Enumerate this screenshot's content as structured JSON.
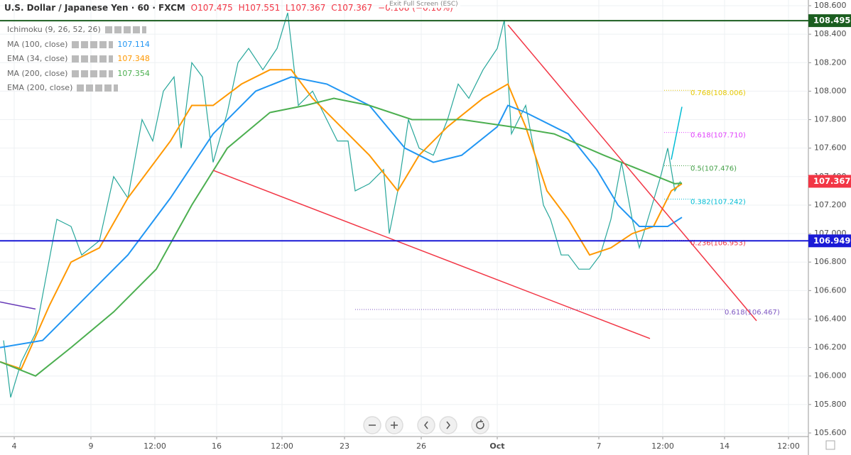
{
  "header": {
    "symbol": "U.S. Dollar / Japanese Yen · 60 · FXCM",
    "open": "O107.475",
    "high": "H107.551",
    "low": "L107.367",
    "close": "C107.367",
    "change": "−0.108 (−0.10%)",
    "exit": "Exit Full Screen (ESC)"
  },
  "indicators": [
    {
      "name": "Ichimoku (9, 26, 52, 26)"
    },
    {
      "name": "MA (100, close)",
      "value": "107.114",
      "color": "#2196f3"
    },
    {
      "name": "EMA (34, close)",
      "value": "107.348",
      "color": "#ff9800"
    },
    {
      "name": "MA (200, close)",
      "value": "107.354",
      "color": "#4caf50"
    },
    {
      "name": "EMA (200, close)"
    }
  ],
  "chart_data": {
    "type": "line",
    "xlim": [
      0,
      1138
    ],
    "ylim": [
      105.575,
      108.64
    ],
    "xticks": [
      {
        "value": 20,
        "label": "4"
      },
      {
        "value": 128,
        "label": "9"
      },
      {
        "value": 218,
        "label": "12:00"
      },
      {
        "value": 305,
        "label": "16"
      },
      {
        "value": 397,
        "label": "12:00"
      },
      {
        "value": 485,
        "label": "23"
      },
      {
        "value": 593,
        "label": "26"
      },
      {
        "value": 700,
        "label": "Oct"
      },
      {
        "value": 843,
        "label": "7"
      },
      {
        "value": 933,
        "label": "12:00"
      },
      {
        "value": 1020,
        "label": "14"
      },
      {
        "value": 1110,
        "label": "12:00"
      }
    ],
    "yticks": [
      {
        "value": 105.6,
        "label": "105.600"
      },
      {
        "value": 105.8,
        "label": "105.800"
      },
      {
        "value": 106,
        "label": "106.000"
      },
      {
        "value": 106.2,
        "label": "106.200"
      },
      {
        "value": 106.4,
        "label": "106.400"
      },
      {
        "value": 106.6,
        "label": "106.600"
      },
      {
        "value": 106.8,
        "label": "106.800"
      },
      {
        "value": 107,
        "label": "107.000"
      },
      {
        "value": 107.2,
        "label": "107.200"
      },
      {
        "value": 107.4,
        "label": "107.400"
      },
      {
        "value": 107.6,
        "label": "107.600"
      },
      {
        "value": 107.8,
        "label": "107.800"
      },
      {
        "value": 108,
        "label": "108.000"
      },
      {
        "value": 108.2,
        "label": "108.200"
      },
      {
        "value": 108.4,
        "label": "108.400"
      },
      {
        "value": 108.6,
        "label": "108.600"
      }
    ],
    "grid": true,
    "series": [
      {
        "color": "#26a69a",
        "x": [
          5,
          15,
          30,
          50,
          65,
          80,
          100,
          115,
          140,
          160,
          180,
          200,
          215,
          230,
          245,
          255,
          270,
          285,
          300,
          320,
          335,
          350,
          370,
          390,
          405,
          420,
          440,
          460,
          475,
          490,
          500,
          520,
          540,
          548,
          560,
          575,
          590,
          610,
          630,
          645,
          660,
          680,
          700,
          710,
          720,
          740,
          755,
          765,
          775,
          790,
          800,
          815,
          830,
          845,
          860,
          875,
          890,
          900,
          915,
          930,
          940,
          950,
          958
        ],
        "values": [
          106.25,
          105.85,
          106.1,
          106.3,
          106.7,
          107.1,
          107.05,
          106.85,
          106.95,
          107.4,
          107.25,
          107.8,
          107.65,
          108.0,
          108.1,
          107.6,
          108.2,
          108.1,
          107.5,
          107.85,
          108.2,
          108.3,
          108.15,
          108.3,
          108.55,
          107.9,
          108.0,
          107.8,
          107.65,
          107.65,
          107.3,
          107.35,
          107.45,
          107.0,
          107.3,
          107.8,
          107.6,
          107.55,
          107.8,
          108.05,
          107.95,
          108.15,
          108.3,
          108.5,
          107.7,
          107.9,
          107.5,
          107.2,
          107.1,
          106.85,
          106.85,
          106.75,
          106.75,
          106.85,
          107.1,
          107.5,
          107.1,
          106.9,
          107.15,
          107.4,
          107.6,
          107.3,
          107.367
        ]
      },
      {
        "name": "EMA (34, close)",
        "color": "#ff9800",
        "x": [
          0,
          30,
          70,
          100,
          140,
          180,
          240,
          270,
          300,
          340,
          380,
          410,
          440,
          480,
          520,
          560,
          590,
          630,
          680,
          715,
          740,
          770,
          800,
          830,
          860,
          890,
          920,
          945,
          960
        ],
        "values": [
          106.1,
          106.05,
          106.5,
          106.8,
          106.9,
          107.25,
          107.65,
          107.9,
          107.9,
          108.05,
          108.15,
          108.15,
          107.95,
          107.75,
          107.55,
          107.3,
          107.55,
          107.75,
          107.95,
          108.05,
          107.75,
          107.3,
          107.1,
          106.85,
          106.9,
          107.0,
          107.05,
          107.3,
          107.35
        ]
      },
      {
        "name": "MA (100, close)",
        "color": "#2196f3",
        "x": [
          0,
          60,
          120,
          180,
          240,
          300,
          360,
          410,
          460,
          520,
          570,
          610,
          650,
          700,
          715,
          740,
          800,
          840,
          870,
          900,
          940,
          960
        ],
        "values": [
          106.2,
          106.25,
          106.55,
          106.85,
          107.25,
          107.7,
          108.0,
          108.1,
          108.05,
          107.9,
          107.6,
          107.5,
          107.55,
          107.75,
          107.9,
          107.85,
          107.7,
          107.45,
          107.2,
          107.05,
          107.05,
          107.114
        ]
      },
      {
        "name": "MA (200, close)",
        "color": "#4caf50",
        "x": [
          0,
          50,
          100,
          160,
          220,
          270,
          320,
          380,
          430,
          470,
          520,
          580,
          650,
          720,
          780,
          850,
          900,
          950,
          960
        ],
        "values": [
          106.1,
          106.0,
          106.2,
          106.45,
          106.75,
          107.2,
          107.6,
          107.85,
          107.9,
          107.95,
          107.9,
          107.8,
          107.8,
          107.75,
          107.7,
          107.55,
          107.45,
          107.35,
          107.354
        ]
      }
    ],
    "trend_lines": [
      {
        "color": "#f23645",
        "x": [
          715,
          1065
        ],
        "values": [
          108.465,
          106.388
        ]
      },
      {
        "color": "#f23645",
        "x": [
          300,
          915
        ],
        "values": [
          107.444,
          106.263
        ]
      },
      {
        "color": "#673ab7",
        "x": [
          0,
          50
        ],
        "values": [
          106.52,
          106.47
        ]
      },
      {
        "color": "#00bcd4",
        "x": [
          945,
          960
        ],
        "values": [
          107.52,
          107.89
        ]
      }
    ],
    "fib_levels": [
      {
        "label": "0.768(108.006)",
        "value": 108.006,
        "color": "#e6c800"
      },
      {
        "label": "0.618(107.710)",
        "value": 107.71,
        "color": "#e040fb"
      },
      {
        "label": "0.5(107.476)",
        "value": 107.476,
        "color": "#43a047"
      },
      {
        "label": "0.382(107.242)",
        "value": 107.242,
        "color": "#00bcd4"
      },
      {
        "label": "0.236(106.953)",
        "value": 106.953,
        "color": "#f23645"
      },
      {
        "label": "0.618(106.467)",
        "value": 106.467,
        "color": "#7e57c2"
      }
    ],
    "price_lines": [
      {
        "value": 108.495,
        "label": "108.495",
        "color": "#1b5e20"
      },
      {
        "value": 107.367,
        "label": "107.367",
        "color": "#f23645"
      },
      {
        "value": 106.949,
        "label": "106.949",
        "color": "#1a1ad6"
      }
    ]
  }
}
